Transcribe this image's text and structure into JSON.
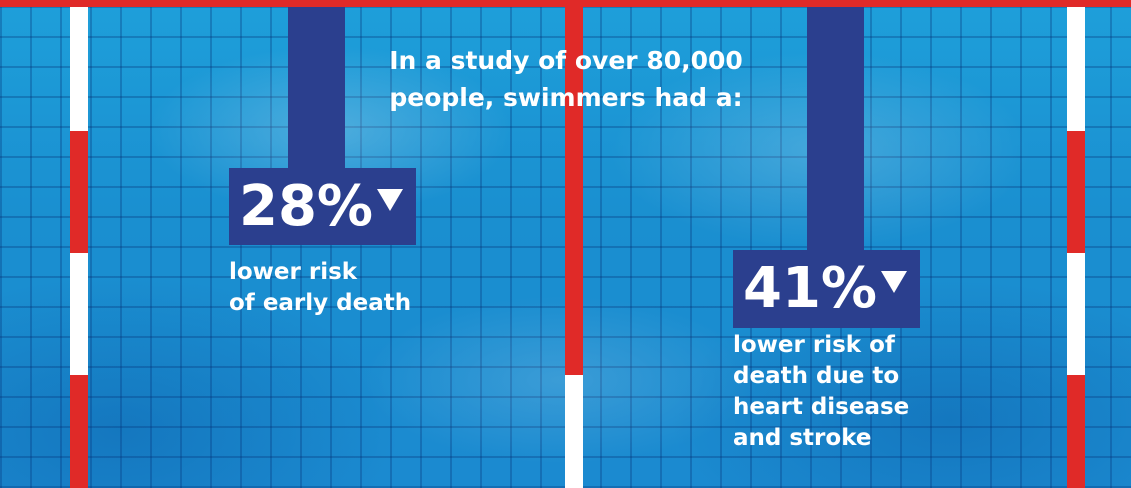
{
  "headline": {
    "line1": "In a study of over 80,000",
    "line2": "people, swimmers had a:"
  },
  "stats": [
    {
      "value": "28%",
      "icon": "down-triangle-icon",
      "caption_lines": [
        "lower risk",
        "of early death"
      ]
    },
    {
      "value": "41%",
      "icon": "down-triangle-icon",
      "caption_lines": [
        "lower risk of",
        "death due to",
        "heart disease",
        "and stroke"
      ]
    }
  ],
  "colors": {
    "navy": "#2b3f8e",
    "lane_red": "#e02a28",
    "lane_white": "#ffffff",
    "water": "#1a9bd8"
  }
}
